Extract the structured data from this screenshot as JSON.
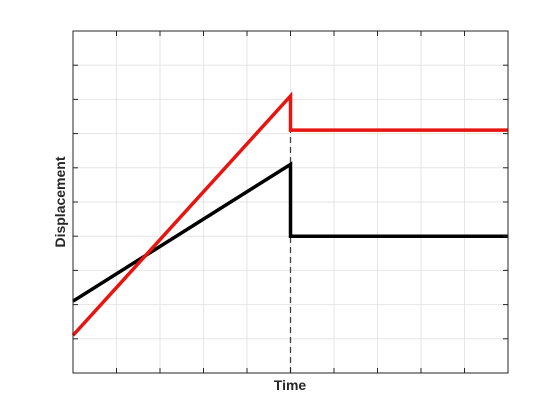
{
  "chart_data": {
    "type": "line",
    "title": "",
    "xlabel": "Time",
    "ylabel": "Displacement",
    "xlim": [
      0,
      10
    ],
    "ylim": [
      0,
      10
    ],
    "x_ticks": [
      0,
      1,
      2,
      3,
      4,
      5,
      6,
      7,
      8,
      9,
      10
    ],
    "y_ticks": [
      0,
      1,
      2,
      3,
      4,
      5,
      6,
      7,
      8,
      9,
      10
    ],
    "tick_labels_shown": false,
    "grid": true,
    "series": [
      {
        "color": "#000000",
        "points": [
          [
            0,
            2.1
          ],
          [
            5,
            6.1
          ],
          [
            5,
            4.0
          ],
          [
            10,
            4.0
          ]
        ]
      },
      {
        "color": "#e8140f",
        "points": [
          [
            0,
            1.1
          ],
          [
            5,
            8.1
          ],
          [
            5,
            7.1
          ],
          [
            10,
            7.1
          ]
        ]
      }
    ],
    "annotations": [
      {
        "type": "vertical-dashed-line",
        "x": 5,
        "y_from": 0,
        "y_to": 7.1,
        "color": "#404040"
      }
    ],
    "axis_color": "#262626",
    "grid_color": "#e6e6e6"
  }
}
